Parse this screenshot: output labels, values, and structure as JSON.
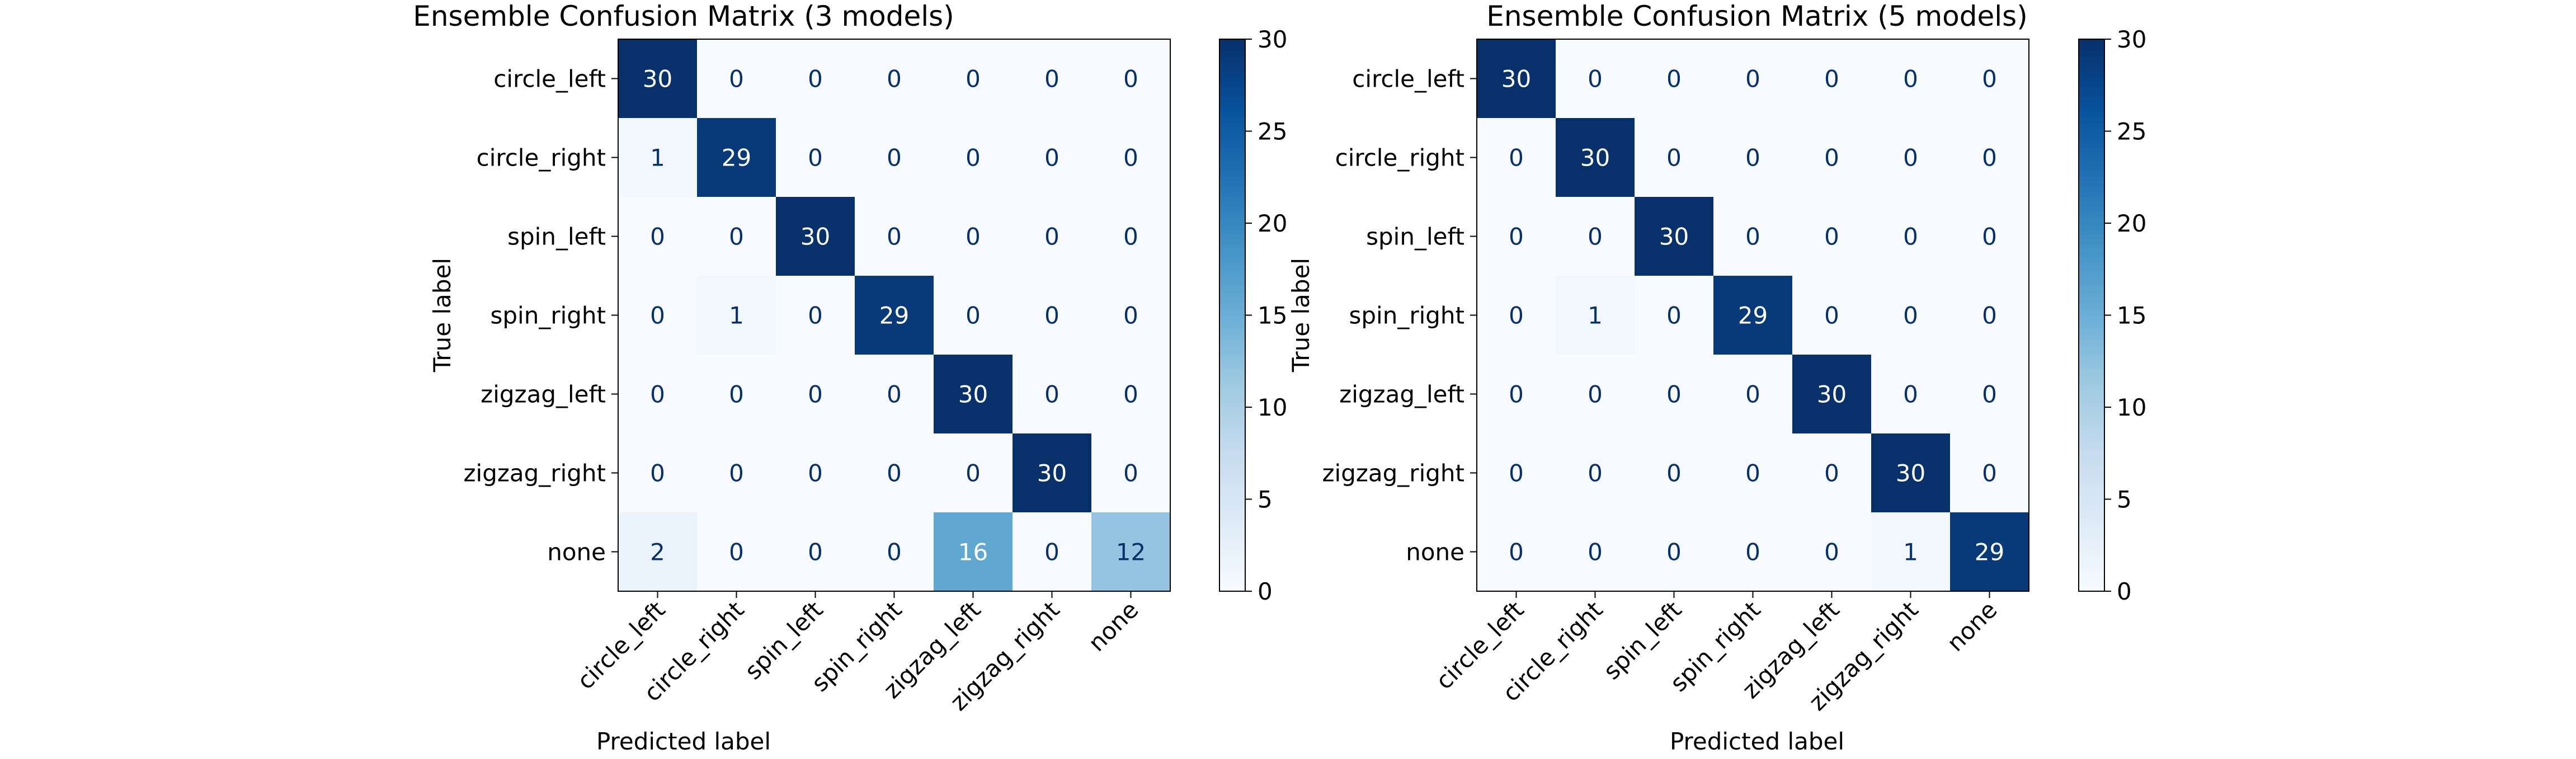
{
  "chart_data": [
    {
      "type": "heatmap",
      "title": "Ensemble Confusion Matrix (3 models)",
      "xlabel": "Predicted label",
      "ylabel": "True label",
      "x_categories": [
        "circle_left",
        "circle_right",
        "spin_left",
        "spin_right",
        "zigzag_left",
        "zigzag_right",
        "none"
      ],
      "y_categories": [
        "circle_left",
        "circle_right",
        "spin_left",
        "spin_right",
        "zigzag_left",
        "zigzag_right",
        "none"
      ],
      "values": [
        [
          30,
          0,
          0,
          0,
          0,
          0,
          0
        ],
        [
          1,
          29,
          0,
          0,
          0,
          0,
          0
        ],
        [
          0,
          0,
          30,
          0,
          0,
          0,
          0
        ],
        [
          0,
          1,
          0,
          29,
          0,
          0,
          0
        ],
        [
          0,
          0,
          0,
          0,
          30,
          0,
          0
        ],
        [
          0,
          0,
          0,
          0,
          0,
          30,
          0
        ],
        [
          2,
          0,
          0,
          0,
          16,
          0,
          12
        ]
      ],
      "colormap": "Blues",
      "colorbar": {
        "range": [
          0,
          30
        ],
        "ticks": [
          0,
          5,
          10,
          15,
          20,
          25,
          30
        ]
      }
    },
    {
      "type": "heatmap",
      "title": "Ensemble Confusion Matrix (5 models)",
      "xlabel": "Predicted label",
      "ylabel": "True label",
      "x_categories": [
        "circle_left",
        "circle_right",
        "spin_left",
        "spin_right",
        "zigzag_left",
        "zigzag_right",
        "none"
      ],
      "y_categories": [
        "circle_left",
        "circle_right",
        "spin_left",
        "spin_right",
        "zigzag_left",
        "zigzag_right",
        "none"
      ],
      "values": [
        [
          30,
          0,
          0,
          0,
          0,
          0,
          0
        ],
        [
          0,
          30,
          0,
          0,
          0,
          0,
          0
        ],
        [
          0,
          0,
          30,
          0,
          0,
          0,
          0
        ],
        [
          0,
          1,
          0,
          29,
          0,
          0,
          0
        ],
        [
          0,
          0,
          0,
          0,
          30,
          0,
          0
        ],
        [
          0,
          0,
          0,
          0,
          0,
          30,
          0
        ],
        [
          0,
          0,
          0,
          0,
          0,
          1,
          29
        ]
      ],
      "colormap": "Blues",
      "colorbar": {
        "range": [
          0,
          30
        ],
        "ticks": [
          0,
          5,
          10,
          15,
          20,
          25,
          30
        ]
      }
    }
  ]
}
